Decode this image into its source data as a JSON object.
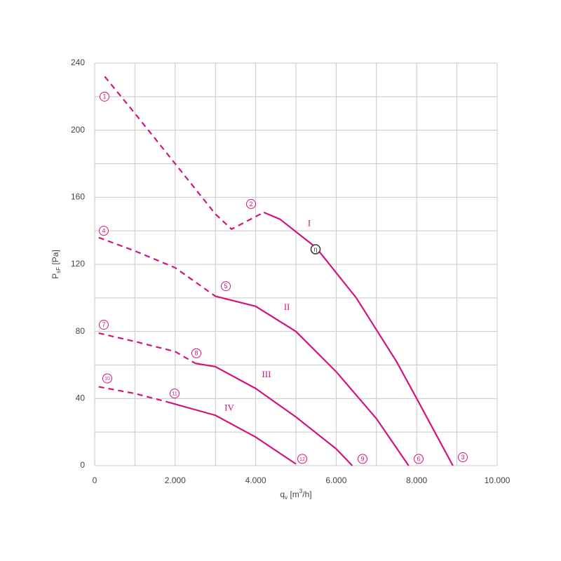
{
  "chart_data": {
    "type": "line",
    "xlabel": [
      "q",
      "v",
      " [m",
      "3",
      "/h]"
    ],
    "ylabel": [
      "P",
      "sF",
      " [Pa]"
    ],
    "xlim": [
      0,
      10000
    ],
    "ylim": [
      0,
      240
    ],
    "xticks": [
      0,
      {
        "value": 2000,
        "label": "2.000"
      },
      {
        "value": 4000,
        "label": "4.000"
      },
      {
        "value": 6000,
        "label": "6.000"
      },
      {
        "value": 8000,
        "label": "8.000"
      },
      {
        "value": 10000,
        "label": "10.000"
      }
    ],
    "yticks": [
      0,
      40,
      80,
      120,
      160,
      200,
      240
    ],
    "xgrid": [
      0,
      1000,
      2000,
      3000,
      4000,
      5000,
      6000,
      7000,
      8000,
      9000,
      10000
    ],
    "ygrid": [
      0,
      20,
      40,
      60,
      80,
      100,
      120,
      140,
      160,
      180,
      200,
      220,
      240
    ],
    "series": [
      {
        "name": "I",
        "color": "#d4147e",
        "name_at": [
          5331,
          144
        ],
        "segments": [
          {
            "linestyle": "dashed",
            "x": [
              250,
              1000,
              2000,
              3000,
              3400,
              3800,
              4200
            ],
            "values": [
              232,
              210,
              180,
              150,
              141,
              146,
              151
            ]
          },
          {
            "linestyle": "solid",
            "x": [
              4200,
              4600,
              5500,
              6500,
              7500,
              8000,
              8900
            ],
            "values": [
              151,
              147,
              130,
              100,
              62,
              40,
              0
            ]
          }
        ]
      },
      {
        "name": "II",
        "color": "#d4147e",
        "name_at": [
          4774,
          94
        ],
        "segments": [
          {
            "linestyle": "dashed",
            "x": [
              100,
              1000,
              2000,
              3000
            ],
            "values": [
              136,
              128,
              118,
              101
            ]
          },
          {
            "linestyle": "solid",
            "x": [
              3000,
              4000,
              5000,
              6000,
              7000,
              7800
            ],
            "values": [
              101,
              95,
              80,
              56,
              28,
              0
            ]
          }
        ]
      },
      {
        "name": "III",
        "color": "#d4147e",
        "name_at": [
          4268,
          54
        ],
        "segments": [
          {
            "linestyle": "dashed",
            "x": [
              100,
              1000,
              2000,
              2500
            ],
            "values": [
              79,
              74,
              68,
              61
            ]
          },
          {
            "linestyle": "solid",
            "x": [
              2500,
              3000,
              4000,
              5000,
              6000,
              6400
            ],
            "values": [
              61,
              59,
              46,
              29,
              10,
              0
            ]
          }
        ]
      },
      {
        "name": "IV",
        "color": "#d4147e",
        "name_at": [
          3345,
          34
        ],
        "segments": [
          {
            "linestyle": "dashed",
            "x": [
              100,
              1000,
              1800
            ],
            "values": [
              47,
              43,
              38
            ]
          },
          {
            "linestyle": "solid",
            "x": [
              1800,
              3000,
              4000,
              5000
            ],
            "values": [
              38,
              30,
              17,
              1
            ]
          }
        ]
      }
    ],
    "annotations": [
      {
        "text": "1",
        "x": 244,
        "y": 220,
        "color": "#d4147e"
      },
      {
        "text": "2",
        "x": 3885,
        "y": 156,
        "color": "#d4147e"
      },
      {
        "text": "3",
        "x": 9146,
        "y": 5,
        "color": "#d4147e"
      },
      {
        "text": "4",
        "x": 226,
        "y": 140,
        "color": "#d4147e"
      },
      {
        "text": "5",
        "x": 3258,
        "y": 107,
        "color": "#d4147e"
      },
      {
        "text": "6",
        "x": 8049,
        "y": 4,
        "color": "#d4147e"
      },
      {
        "text": "7",
        "x": 226,
        "y": 84,
        "color": "#d4147e"
      },
      {
        "text": "8",
        "x": 2526,
        "y": 67,
        "color": "#d4147e"
      },
      {
        "text": "9",
        "x": 6655,
        "y": 4,
        "color": "#d4147e"
      },
      {
        "text": "10",
        "x": 314,
        "y": 52,
        "color": "#d4147e"
      },
      {
        "text": "11",
        "x": 1986,
        "y": 43,
        "color": "#d4147e"
      },
      {
        "text": "12",
        "x": 5157,
        "y": 4,
        "color": "#d4147e"
      },
      {
        "text": "η",
        "x": 5488,
        "y": 129,
        "color": "#333333"
      }
    ]
  }
}
